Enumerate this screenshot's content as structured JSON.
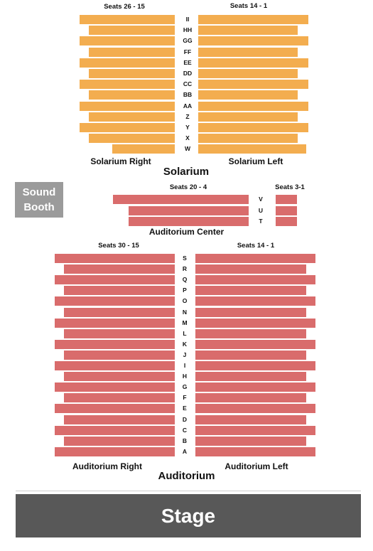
{
  "colors": {
    "solarium": "#f3ad4f",
    "auditorium": "#d96c6c",
    "booth": "#9b9b9b",
    "stage": "#585858"
  },
  "solarium": {
    "title": "Solarium",
    "left_seats_header": "Seats 26 - 15",
    "right_seats_header": "Seats 14 - 1",
    "left_section_name": "Solarium Right",
    "right_section_name": "Solarium Left",
    "rows": [
      "II",
      "HH",
      "GG",
      "FF",
      "EE",
      "DD",
      "CC",
      "BB",
      "AA",
      "Z",
      "Y",
      "X",
      "W"
    ]
  },
  "sound_booth": {
    "label": "Sound\nBooth"
  },
  "auditorium_center": {
    "name": "Auditorium Center",
    "left_seats_header": "Seats 20 - 4",
    "right_seats_header": "Seats 3-1",
    "rows": [
      "V",
      "U",
      "T"
    ]
  },
  "auditorium": {
    "title": "Auditorium",
    "left_seats_header": "Seats 30 - 15",
    "right_seats_header": "Seats 14 - 1",
    "left_section_name": "Auditorium Right",
    "right_section_name": "Auditorium Left",
    "rows": [
      "S",
      "R",
      "Q",
      "P",
      "O",
      "N",
      "M",
      "L",
      "K",
      "J",
      "I",
      "H",
      "G",
      "F",
      "E",
      "D",
      "C",
      "B",
      "A"
    ]
  },
  "stage": {
    "label": "Stage"
  }
}
